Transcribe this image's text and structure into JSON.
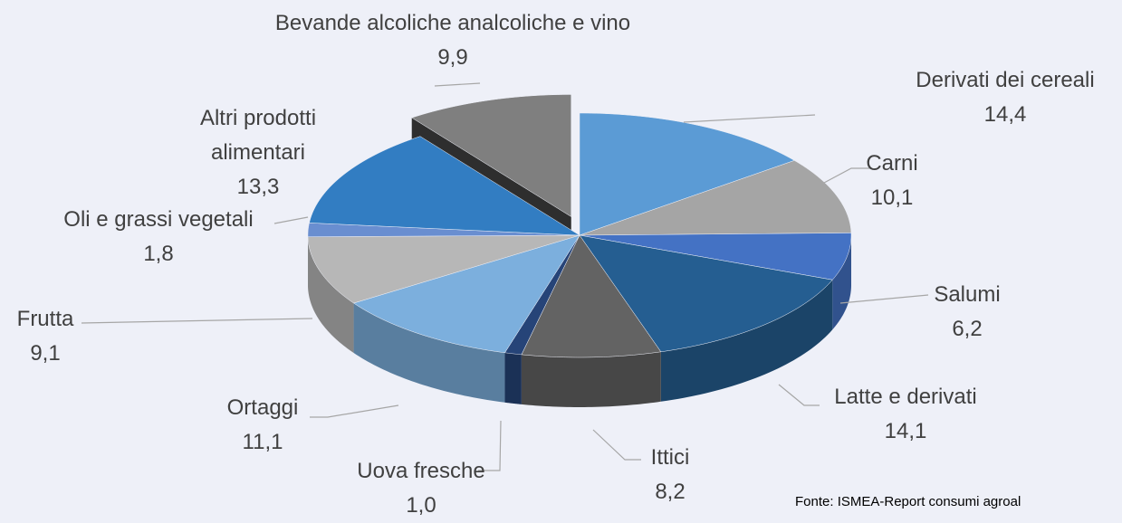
{
  "chart_data": {
    "type": "pie3d",
    "categories": [
      "Derivati dei cereali",
      "Carni",
      "Salumi",
      "Latte e derivati",
      "Ittici",
      "Uova fresche",
      "Ortaggi",
      "Frutta",
      "Oli e grassi vegetali",
      "Altri prodotti alimentari",
      "Bevande alcoliche analcoliche e vino"
    ],
    "values": [
      14.4,
      10.1,
      6.2,
      14.1,
      8.2,
      1.0,
      11.1,
      9.1,
      1.8,
      13.3,
      9.9
    ],
    "value_labels": [
      "14,4",
      "10,1",
      "6,2",
      "14,1",
      "8,2",
      "1,0",
      "11,1",
      "9,1",
      "1,8",
      "13,3",
      "9,9"
    ],
    "colors": [
      "#5b9bd5",
      "#a5a5a5",
      "#4472c4",
      "#255e91",
      "#636363",
      "#264478",
      "#7cafdd",
      "#b7b7b7",
      "#698ed0",
      "#327dc2",
      "#7f7f7f"
    ],
    "exploded": [
      10
    ],
    "source": "Fonte: ISMEA-Report consumi agroal"
  }
}
